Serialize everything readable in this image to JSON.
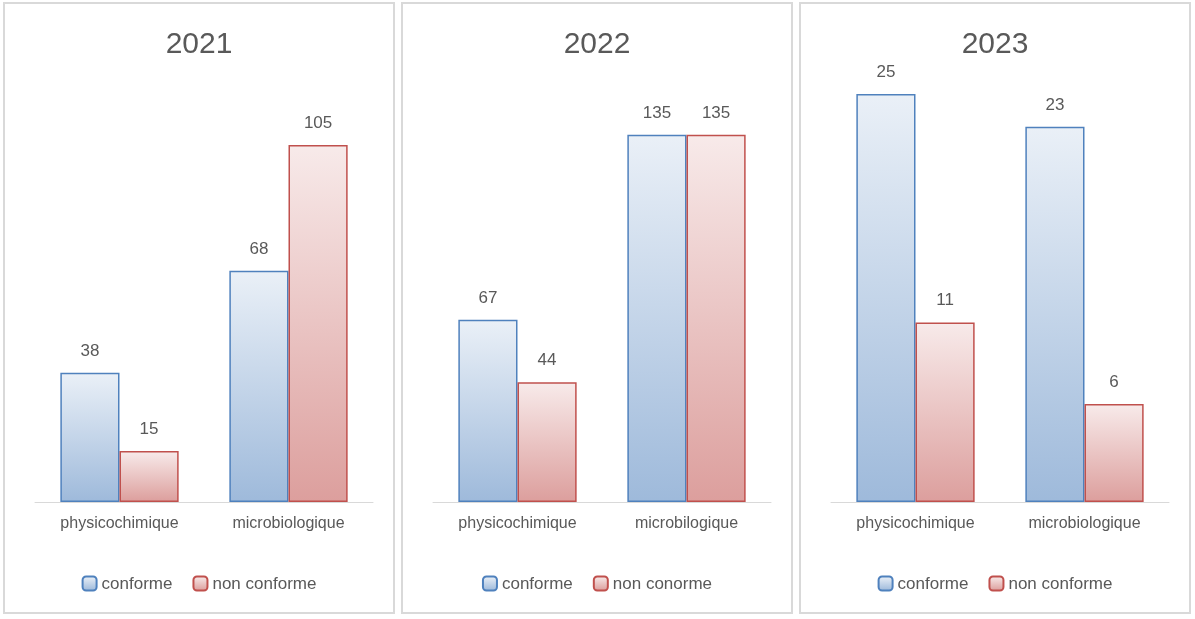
{
  "chart_data": [
    {
      "type": "bar",
      "title": "2021",
      "categories": [
        "physicochimique",
        "microbiologique"
      ],
      "series": [
        {
          "name": "conforme",
          "color": "#4f81bd",
          "values": [
            38,
            68
          ]
        },
        {
          "name": "non conforme",
          "color": "#c0504d",
          "values": [
            15,
            105
          ]
        }
      ],
      "data_labels": true,
      "legend": "bottom"
    },
    {
      "type": "bar",
      "title": "2022",
      "categories": [
        "physicochimique",
        "microbilogique"
      ],
      "series": [
        {
          "name": "conforme",
          "color": "#4f81bd",
          "values": [
            67,
            135
          ]
        },
        {
          "name": "non conorme",
          "color": "#c0504d",
          "values": [
            44,
            135
          ]
        }
      ],
      "data_labels": true,
      "legend": "bottom"
    },
    {
      "type": "bar",
      "title": "2023",
      "categories": [
        "physicochimique",
        "microbiologique"
      ],
      "series": [
        {
          "name": "conforme",
          "color": "#4f81bd",
          "values": [
            25,
            23
          ]
        },
        {
          "name": "non conforme",
          "color": "#c0504d",
          "values": [
            11,
            6
          ]
        }
      ],
      "data_labels": true,
      "legend": "bottom"
    }
  ]
}
